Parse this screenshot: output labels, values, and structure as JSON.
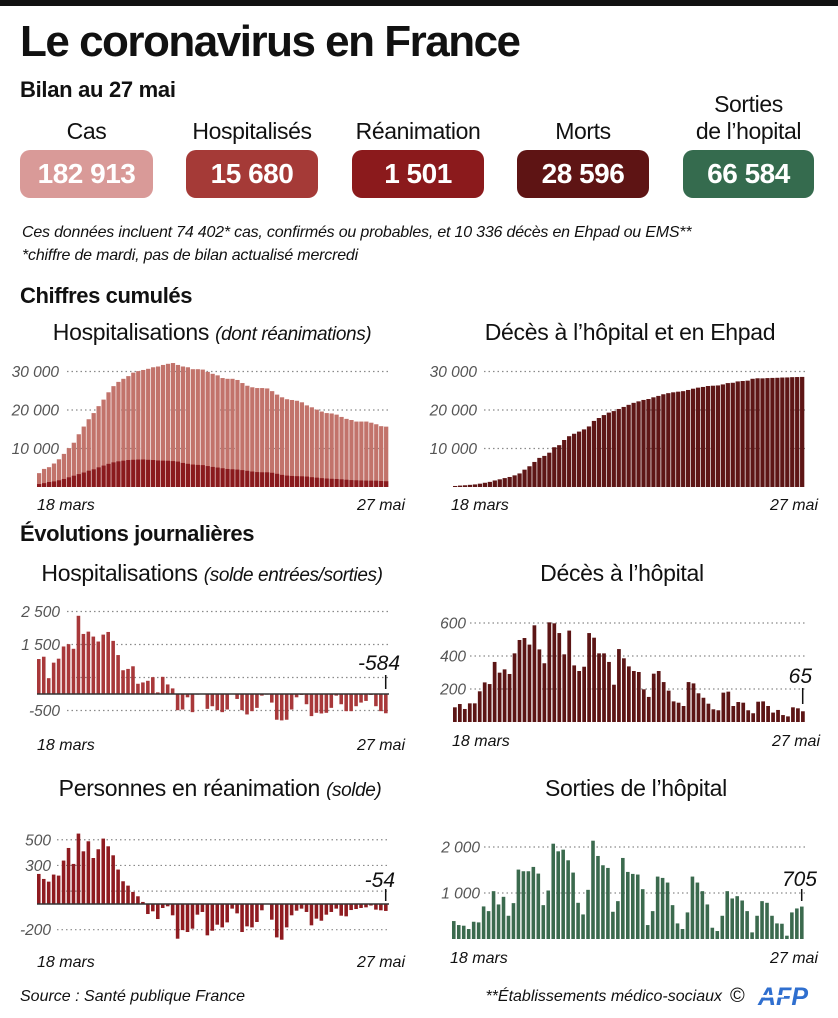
{
  "header": {
    "title": "Le coronavirus en France",
    "subtitle": "Bilan au 27 mai"
  },
  "stats": [
    {
      "label": "Cas",
      "value": "182 913",
      "color": "#d99a98"
    },
    {
      "label": "Hospitalisés",
      "value": "15 680",
      "color": "#a53a37"
    },
    {
      "label": "Réanimation",
      "value": "1 501",
      "color": "#8b1a1c"
    },
    {
      "label": "Morts",
      "value": "28 596",
      "color": "#5e1414"
    },
    {
      "label_top": "Sorties",
      "label": "de l’hopital",
      "value": "66 584",
      "color": "#356b4e"
    }
  ],
  "notes": [
    "Ces données incluent 74 402* cas, confirmés ou probables, et 10 336 décès en Ehpad ou EMS**",
    "*chiffre de mardi, pas de bilan actualisé mercredi"
  ],
  "sections": {
    "cumulative": "Chiffres cumulés",
    "daily": "Évolutions journalières"
  },
  "chart_data": [
    {
      "id": "hospitalisations-cumul",
      "type": "bar",
      "stacking": "overlay",
      "title": "Hospitalisations",
      "title_note": "(dont réanimations)",
      "x_labels": [
        "18 mars",
        "27 mai"
      ],
      "x_range": [
        "18 mars",
        "27 mai"
      ],
      "ylim": [
        0,
        32500
      ],
      "grid": true,
      "gridlines": [
        10000,
        20000,
        30000
      ],
      "yticks": [
        {
          "value": 30000,
          "label": "30 000"
        },
        {
          "value": 20000,
          "label": "20 000"
        },
        {
          "value": 10000,
          "label": "10 000"
        }
      ],
      "series": [
        {
          "name": "Hospitalisations",
          "color": "#c2736b",
          "values": [
            3600,
            4700,
            5150,
            6100,
            7200,
            8600,
            10100,
            11500,
            13700,
            15700,
            17600,
            19200,
            21000,
            22700,
            24600,
            26200,
            27300,
            28100,
            28800,
            29700,
            30100,
            30400,
            30700,
            31100,
            31300,
            31700,
            32000,
            32200,
            31700,
            31300,
            31100,
            30600,
            30600,
            30500,
            29900,
            29400,
            29000,
            28300,
            28100,
            28100,
            27800,
            27000,
            26300,
            25900,
            25700,
            25700,
            25600,
            24900,
            24000,
            23300,
            22800,
            22600,
            22400,
            22000,
            21200,
            20700,
            20100,
            19600,
            19200,
            19100,
            18800,
            18200,
            17700,
            17400,
            17000,
            17000,
            17000,
            16700,
            16300,
            15800,
            15680
          ]
        },
        {
          "name": "dont réanimations",
          "color": "#8a1a1d",
          "values": [
            771,
            1002,
            1297,
            1453,
            1746,
            2082,
            2516,
            2935,
            3351,
            3758,
            4236,
            4592,
            5107,
            5565,
            6017,
            6399,
            6662,
            6838,
            7004,
            7072,
            7131,
            7148,
            7066,
            7004,
            6883,
            6845,
            6821,
            6730,
            6599,
            6248,
            6027,
            5833,
            5744,
            5683,
            5433,
            5218,
            5053,
            4870,
            4682,
            4608,
            4526,
            4387,
            4207,
            4019,
            3878,
            3827,
            3819,
            3696,
            3430,
            3147,
            2961,
            2868,
            2812,
            2776,
            2712,
            2542,
            2428,
            2299,
            2203,
            2132,
            2087,
            1998,
            1894,
            1794,
            1745,
            1701,
            1665,
            1655,
            1643,
            1555,
            1501
          ]
        }
      ]
    },
    {
      "id": "deces-cumul",
      "type": "bar",
      "title": "Décès à l’hôpital et en Ehpad",
      "title_note": "",
      "x_labels": [
        "18 mars",
        "27 mai"
      ],
      "x_range": [
        "18 mars",
        "27 mai"
      ],
      "ylim": [
        0,
        32500
      ],
      "grid": true,
      "gridlines": [
        10000,
        20000,
        30000
      ],
      "yticks": [
        {
          "value": 30000,
          "label": "30 000"
        },
        {
          "value": 20000,
          "label": "20 000"
        },
        {
          "value": 10000,
          "label": "10 000"
        }
      ],
      "series": [
        {
          "name": "Décès",
          "color": "#5e1616",
          "values": [
            264,
            372,
            450,
            562,
            674,
            860,
            1100,
            1331,
            1696,
            1995,
            2314,
            2606,
            3024,
            3523,
            4503,
            5389,
            6507,
            7560,
            8078,
            8911,
            10328,
            10869,
            12210,
            13197,
            13832,
            14393,
            14967,
            15729,
            17167,
            17920,
            18681,
            19323,
            19718,
            20265,
            20796,
            21340,
            21856,
            22245,
            22614,
            22856,
            23293,
            23660,
            24087,
            24376,
            24594,
            24760,
            24895,
            25201,
            25531,
            25809,
            25987,
            26230,
            26310,
            26380,
            26643,
            26991,
            27074,
            27425,
            27529,
            27625,
            28108,
            28239,
            28215,
            28289,
            28332,
            28367,
            28432,
            28457,
            28530,
            28560,
            28596
          ]
        }
      ]
    },
    {
      "id": "hospitalisations-solde",
      "type": "bar",
      "title": "Hospitalisations",
      "title_note": "(solde entrées/sorties)",
      "x_labels": [
        "18 mars",
        "27 mai"
      ],
      "x_range": [
        "18 mars",
        "27 mai"
      ],
      "ylim": [
        -900,
        2600
      ],
      "grid": true,
      "gridlines": [
        2500,
        1500,
        500,
        -500
      ],
      "yticks": [
        {
          "value": 2500,
          "label": "2 500"
        },
        {
          "value": 1500,
          "label": "1 500"
        },
        {
          "value": -500,
          "label": "-500"
        }
      ],
      "annotation": {
        "label": "-584",
        "index": 70
      },
      "series": [
        {
          "name": "Solde hospitalisations",
          "color": "#a8383a",
          "values": [
            1060,
            1130,
            480,
            950,
            1070,
            1440,
            1510,
            1370,
            2370,
            1820,
            1890,
            1740,
            1590,
            1800,
            1880,
            1610,
            1180,
            720,
            760,
            840,
            310,
            350,
            400,
            510,
            50,
            520,
            290,
            170,
            -490,
            -470,
            -100,
            -550,
            -20,
            10,
            -450,
            -370,
            -490,
            -550,
            -470,
            -10,
            -150,
            -490,
            -620,
            -520,
            -420,
            -50,
            -20,
            -260,
            -780,
            -800,
            -780,
            -470,
            -100,
            -30,
            -310,
            -670,
            -570,
            -590,
            -570,
            -420,
            -50,
            -310,
            -520,
            -520,
            -370,
            -260,
            -210,
            -30,
            -370,
            -520,
            -584
          ]
        }
      ]
    },
    {
      "id": "deces-hopital-jour",
      "type": "bar",
      "title": "Décès à l’hôpital",
      "title_note": "",
      "x_labels": [
        "18 mars",
        "27 mai"
      ],
      "x_range": [
        "18 mars",
        "27 mai"
      ],
      "ylim": [
        0,
        650
      ],
      "grid": true,
      "gridlines": [
        600,
        400,
        200
      ],
      "yticks": [
        {
          "value": 600,
          "label": "600"
        },
        {
          "value": 400,
          "label": "400"
        },
        {
          "value": 200,
          "label": "200"
        }
      ],
      "annotation": {
        "label": "65",
        "index": 70
      },
      "series": [
        {
          "name": "Décès à l’hôpital",
          "color": "#5c1515",
          "values": [
            89,
            109,
            79,
            113,
            113,
            186,
            240,
            230,
            364,
            299,
            319,
            291,
            416,
            497,
            509,
            469,
            586,
            440,
            356,
            604,
            598,
            539,
            410,
            554,
            343,
            309,
            335,
            539,
            511,
            416,
            416,
            364,
            226,
            442,
            386,
            337,
            309,
            303,
            198,
            152,
            293,
            309,
            242,
            190,
            125,
            117,
            97,
            242,
            234,
            174,
            147,
            111,
            77,
            71,
            178,
            184,
            97,
            121,
            117,
            71,
            53,
            123,
            125,
            97,
            57,
            73,
            42,
            34,
            89,
            83,
            65
          ]
        }
      ]
    },
    {
      "id": "reanimation-solde",
      "type": "bar",
      "title": "Personnes en réanimation",
      "title_note": "(solde)",
      "x_labels": [
        "18 mars",
        "27 mai"
      ],
      "x_range": [
        "18 mars",
        "27 mai"
      ],
      "ylim": [
        -300,
        600
      ],
      "grid": true,
      "gridlines": [
        500,
        300,
        100,
        -200
      ],
      "yticks": [
        {
          "value": 500,
          "label": "500"
        },
        {
          "value": 300,
          "label": "300"
        },
        {
          "value": -200,
          "label": "-200"
        }
      ],
      "annotation": {
        "label": "-54",
        "index": 70
      },
      "series": [
        {
          "name": "Solde réanimation",
          "color": "#8f1b20",
          "values": [
            234,
            195,
            174,
            229,
            221,
            338,
            436,
            312,
            548,
            410,
            488,
            358,
            426,
            509,
            449,
            379,
            268,
            177,
            143,
            94,
            60,
            16,
            -78,
            -57,
            -117,
            -31,
            -18,
            -88,
            -270,
            -203,
            -218,
            -192,
            -83,
            -62,
            -244,
            -208,
            -161,
            -182,
            -143,
            -36,
            -73,
            -218,
            -174,
            -182,
            -140,
            -49,
            0,
            -122,
            -260,
            -278,
            -182,
            -88,
            -52,
            -36,
            -62,
            -166,
            -114,
            -130,
            -83,
            -62,
            -36,
            -91,
            -96,
            -47,
            -39,
            -31,
            -26,
            -12,
            -44,
            -49,
            -54
          ]
        }
      ]
    },
    {
      "id": "sorties-hopital-jour",
      "type": "bar",
      "title": "Sorties de l’hôpital",
      "title_note": "",
      "x_labels": [
        "18 mars",
        "27 mai"
      ],
      "x_range": [
        "18 mars",
        "27 mai"
      ],
      "ylim": [
        0,
        2200
      ],
      "grid": true,
      "gridlines": [
        2000,
        1000
      ],
      "yticks": [
        {
          "value": 2000,
          "label": "2 000"
        },
        {
          "value": 1000,
          "label": "1 000"
        }
      ],
      "annotation": {
        "label": "705",
        "index": 70
      },
      "series": [
        {
          "name": "Sorties de l’hôpital",
          "color": "#3b6a4e",
          "values": [
            390,
            303,
            289,
            217,
            375,
            361,
            708,
            606,
            1040,
            751,
            917,
            505,
            780,
            1509,
            1473,
            1473,
            1567,
            1422,
            736,
            1054,
            2072,
            1906,
            1942,
            1711,
            1444,
            787,
            534,
            1069,
            2137,
            1805,
            1603,
            1545,
            592,
            823,
            1762,
            1458,
            1415,
            1401,
            1083,
            303,
            606,
            1357,
            1328,
            1227,
            736,
            339,
            217,
            578,
            1357,
            1227,
            1040,
            751,
            245,
            173,
            505,
            1040,
            881,
            931,
            837,
            606,
            144,
            505,
            823,
            787,
            505,
            339,
            332,
            72,
            578,
            664,
            705
          ]
        }
      ]
    }
  ],
  "footer": {
    "source": "Source : Santé publique France",
    "footnote": "**Établissements médico-sociaux",
    "copyright_symbol": "©",
    "agency": "AFP",
    "agency_color": "#2f6fcf"
  }
}
